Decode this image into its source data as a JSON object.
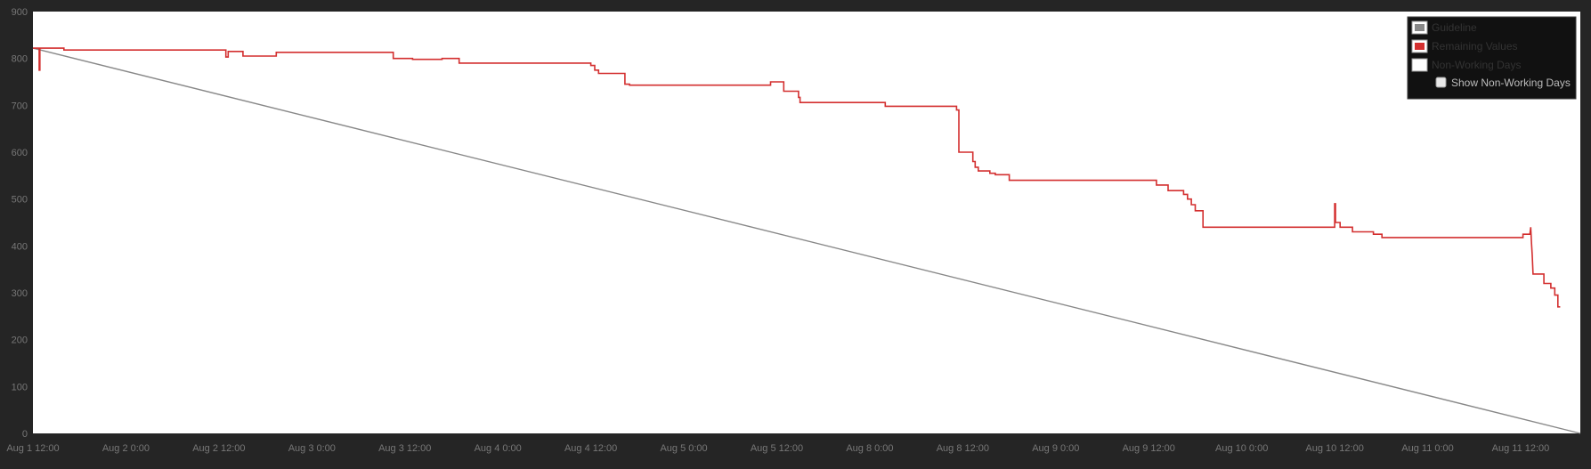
{
  "chart_data": {
    "type": "line",
    "title": "",
    "xlabel": "",
    "ylabel": "",
    "ylim": [
      0,
      900
    ],
    "y_ticks": [
      0,
      100,
      200,
      300,
      400,
      500,
      600,
      700,
      800,
      900
    ],
    "x_range_hours": [
      0,
      252
    ],
    "x_ticks": [
      {
        "h": 0,
        "label": "Aug 1 12:00"
      },
      {
        "h": 12,
        "label": "Aug 2 0:00"
      },
      {
        "h": 24,
        "label": "Aug 2 12:00"
      },
      {
        "h": 36,
        "label": "Aug 3 0:00"
      },
      {
        "h": 48,
        "label": "Aug 3 12:00"
      },
      {
        "h": 60,
        "label": "Aug 4 0:00"
      },
      {
        "h": 72,
        "label": "Aug 4 12:00"
      },
      {
        "h": 84,
        "label": "Aug 5 0:00"
      },
      {
        "h": 96,
        "label": "Aug 5 12:00"
      },
      {
        "h": 108,
        "label": "Aug 8 0:00"
      },
      {
        "h": 120,
        "label": "Aug 8 12:00"
      },
      {
        "h": 132,
        "label": "Aug 9 0:00"
      },
      {
        "h": 144,
        "label": "Aug 9 12:00"
      },
      {
        "h": 156,
        "label": "Aug 10 0:00"
      },
      {
        "h": 168,
        "label": "Aug 10 12:00"
      },
      {
        "h": 180,
        "label": "Aug 11 0:00"
      },
      {
        "h": 192,
        "label": "Aug 11 12:00"
      }
    ],
    "grid": false,
    "legend_position": "top-right",
    "series": [
      {
        "name": "Guideline",
        "color": "#888888",
        "kind": "line",
        "points": [
          [
            0,
            822
          ],
          [
            199.7,
            0
          ]
        ]
      },
      {
        "name": "Remaining Values",
        "color": "#d32f2f",
        "kind": "step",
        "points": [
          [
            0,
            822
          ],
          [
            0.8,
            822
          ],
          [
            0.8,
            775
          ],
          [
            0.9,
            775
          ],
          [
            0.9,
            822
          ],
          [
            4.0,
            822
          ],
          [
            4.0,
            818
          ],
          [
            24.9,
            818
          ],
          [
            24.9,
            803
          ],
          [
            25.2,
            803
          ],
          [
            25.2,
            815
          ],
          [
            27.1,
            815
          ],
          [
            27.1,
            805
          ],
          [
            31.4,
            805
          ],
          [
            31.4,
            813
          ],
          [
            46.5,
            813
          ],
          [
            46.5,
            800
          ],
          [
            49.0,
            800
          ],
          [
            49.0,
            798
          ],
          [
            52.8,
            798
          ],
          [
            52.8,
            800
          ],
          [
            55.0,
            800
          ],
          [
            55.0,
            790
          ],
          [
            72.0,
            790
          ],
          [
            72.0,
            785
          ],
          [
            72.5,
            785
          ],
          [
            72.5,
            775
          ],
          [
            73.0,
            775
          ],
          [
            73.0,
            768
          ],
          [
            76.4,
            768
          ],
          [
            76.4,
            745
          ],
          [
            77.0,
            745
          ],
          [
            77.0,
            743
          ],
          [
            95.2,
            743
          ],
          [
            95.2,
            750
          ],
          [
            96.9,
            750
          ],
          [
            96.9,
            730
          ],
          [
            98.8,
            730
          ],
          [
            98.8,
            717
          ],
          [
            99.0,
            717
          ],
          [
            99.0,
            706
          ],
          [
            110.0,
            706
          ],
          [
            110.0,
            698
          ],
          [
            119.2,
            698
          ],
          [
            119.2,
            690
          ],
          [
            119.5,
            690
          ],
          [
            119.5,
            600
          ],
          [
            121.3,
            600
          ],
          [
            121.3,
            580
          ],
          [
            121.6,
            580
          ],
          [
            121.6,
            568
          ],
          [
            122.0,
            568
          ],
          [
            122.0,
            560
          ],
          [
            123.5,
            560
          ],
          [
            123.5,
            555
          ],
          [
            124.2,
            555
          ],
          [
            124.2,
            552
          ],
          [
            126.0,
            552
          ],
          [
            126.0,
            540
          ],
          [
            145.0,
            540
          ],
          [
            145.0,
            530
          ],
          [
            146.5,
            530
          ],
          [
            146.5,
            518
          ],
          [
            148.5,
            518
          ],
          [
            148.5,
            510
          ],
          [
            149.0,
            510
          ],
          [
            149.0,
            500
          ],
          [
            149.5,
            500
          ],
          [
            149.5,
            488
          ],
          [
            150.0,
            488
          ],
          [
            150.0,
            475
          ],
          [
            151.0,
            475
          ],
          [
            151.0,
            440
          ],
          [
            168.0,
            440
          ],
          [
            168.0,
            490
          ],
          [
            168.1,
            490
          ],
          [
            168.1,
            450
          ],
          [
            168.7,
            450
          ],
          [
            168.7,
            440
          ],
          [
            170.3,
            440
          ],
          [
            170.3,
            430
          ],
          [
            173.0,
            430
          ],
          [
            173.0,
            425
          ],
          [
            174.1,
            425
          ],
          [
            174.1,
            418
          ],
          [
            192.3,
            418
          ],
          [
            192.3,
            425
          ],
          [
            193.2,
            425
          ],
          [
            193.3,
            440
          ],
          [
            193.4,
            405
          ],
          [
            193.5,
            380
          ],
          [
            193.6,
            340
          ],
          [
            195.0,
            340
          ],
          [
            195.0,
            320
          ],
          [
            195.9,
            320
          ],
          [
            195.9,
            310
          ],
          [
            196.4,
            310
          ],
          [
            196.4,
            295
          ],
          [
            196.8,
            295
          ],
          [
            196.8,
            270
          ],
          [
            197.1,
            270
          ]
        ]
      },
      {
        "name": "Non-Working Days",
        "color": "#ffffff",
        "kind": "none",
        "points": []
      }
    ],
    "legend": {
      "items": [
        {
          "label": "Guideline",
          "color": "#888888"
        },
        {
          "label": "Remaining Values",
          "color": "#d32f2f"
        },
        {
          "label": "Non-Working Days",
          "color": "#ffffff"
        }
      ],
      "checkbox_label": "Show Non-Working Days",
      "checkbox_checked": false
    }
  },
  "colors": {
    "background": "#252525",
    "plot_background": "#ffffff",
    "axis_text": "#777777",
    "legend_background": "#111111",
    "legend_text": "#333333",
    "checkbox_label_text": "#bbbbbb"
  }
}
